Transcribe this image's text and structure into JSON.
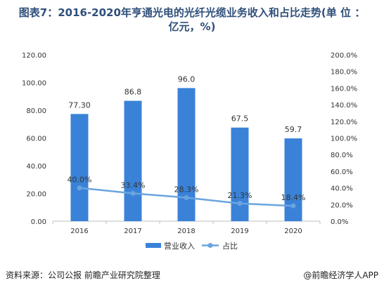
{
  "header": {
    "title_line1": "图表7：2016-2020年亨通光电的光纤光缆业务收入和占比走势(单 位 ：",
    "title_line2": "亿元，%)"
  },
  "footer": {
    "source": "资料来源：公司公报 前瞻产业研究院整理",
    "brand": "@前瞻经济学人APP"
  },
  "colors": {
    "bar": "#3a82d8",
    "line": "#6aa4de",
    "title": "#2f4f7a"
  },
  "chart_data": {
    "type": "bar",
    "categories": [
      "2016",
      "2017",
      "2018",
      "2019",
      "2020"
    ],
    "series": [
      {
        "name": "营业收入",
        "type": "bar",
        "axis": "left",
        "values": [
          77.3,
          86.8,
          96.0,
          67.5,
          59.7
        ],
        "labels": [
          "77.30",
          "86.8",
          "96.0",
          "67.5",
          "59.7"
        ]
      },
      {
        "name": "占比",
        "type": "line",
        "axis": "right",
        "values": [
          40.0,
          33.4,
          28.3,
          21.3,
          18.4
        ],
        "labels": [
          "40.0%",
          "33.4%",
          "28.3%",
          "21.3%",
          "18.4%"
        ]
      }
    ],
    "y_left": {
      "ylim": [
        0,
        120
      ],
      "ticks": [
        "0.00",
        "20.00",
        "40.00",
        "60.00",
        "80.00",
        "100.00",
        "120.00"
      ]
    },
    "y_right": {
      "ylim": [
        0,
        200
      ],
      "ticks": [
        "0.0%",
        "20.0%",
        "40.0%",
        "60.0%",
        "80.0%",
        "100.0%",
        "120.0%",
        "140.0%",
        "160.0%",
        "180.0%",
        "200.0%"
      ]
    },
    "legend": "bottom",
    "grid": false
  }
}
